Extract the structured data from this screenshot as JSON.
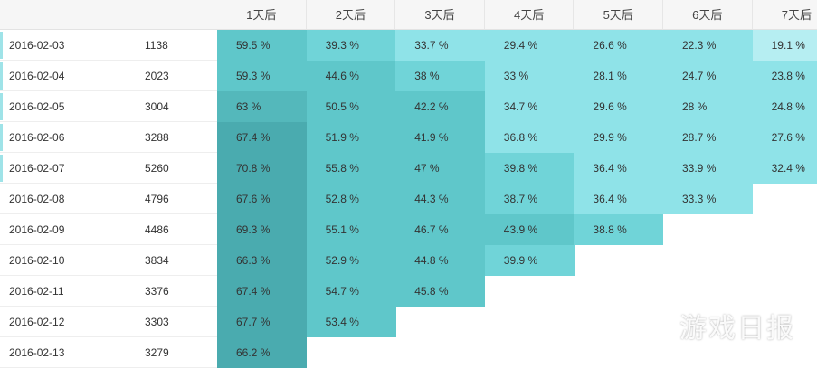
{
  "table": {
    "columns": [
      "1天后",
      "2天后",
      "3天后",
      "4天后",
      "5天后",
      "6天后",
      "7天后"
    ],
    "rows": [
      [
        "2016-02-03",
        "1138",
        "59.5 %",
        "39.3 %",
        "33.7 %",
        "29.4 %",
        "26.6 %",
        "22.3 %",
        "19.1 %"
      ],
      [
        "2016-02-04",
        "2023",
        "59.3 %",
        "44.6 %",
        "38 %",
        "33 %",
        "28.1 %",
        "24.7 %",
        "23.8 %"
      ],
      [
        "2016-02-05",
        "3004",
        "63 %",
        "50.5 %",
        "42.2 %",
        "34.7 %",
        "29.6 %",
        "28 %",
        "24.8 %"
      ],
      [
        "2016-02-06",
        "3288",
        "67.4 %",
        "51.9 %",
        "41.9 %",
        "36.8 %",
        "29.9 %",
        "28.7 %",
        "27.6 %"
      ],
      [
        "2016-02-07",
        "5260",
        "70.8 %",
        "55.8 %",
        "47 %",
        "39.8 %",
        "36.4 %",
        "33.9 %",
        "32.4 %"
      ],
      [
        "2016-02-08",
        "4796",
        "67.6 %",
        "52.8 %",
        "44.3 %",
        "38.7 %",
        "36.4 %",
        "33.3 %"
      ],
      [
        "2016-02-09",
        "4486",
        "69.3 %",
        "55.1 %",
        "46.7 %",
        "43.9 %",
        "38.8 %"
      ],
      [
        "2016-02-10",
        "3834",
        "66.3 %",
        "52.9 %",
        "44.8 %",
        "39.9 %"
      ],
      [
        "2016-02-11",
        "3376",
        "67.4 %",
        "54.7 %",
        "45.8 %"
      ],
      [
        "2016-02-12",
        "3303",
        "67.7 %",
        "53.4 %"
      ],
      [
        "2016-02-13",
        "3279",
        "66.2 %"
      ]
    ]
  },
  "watermark": "游戏日报"
}
